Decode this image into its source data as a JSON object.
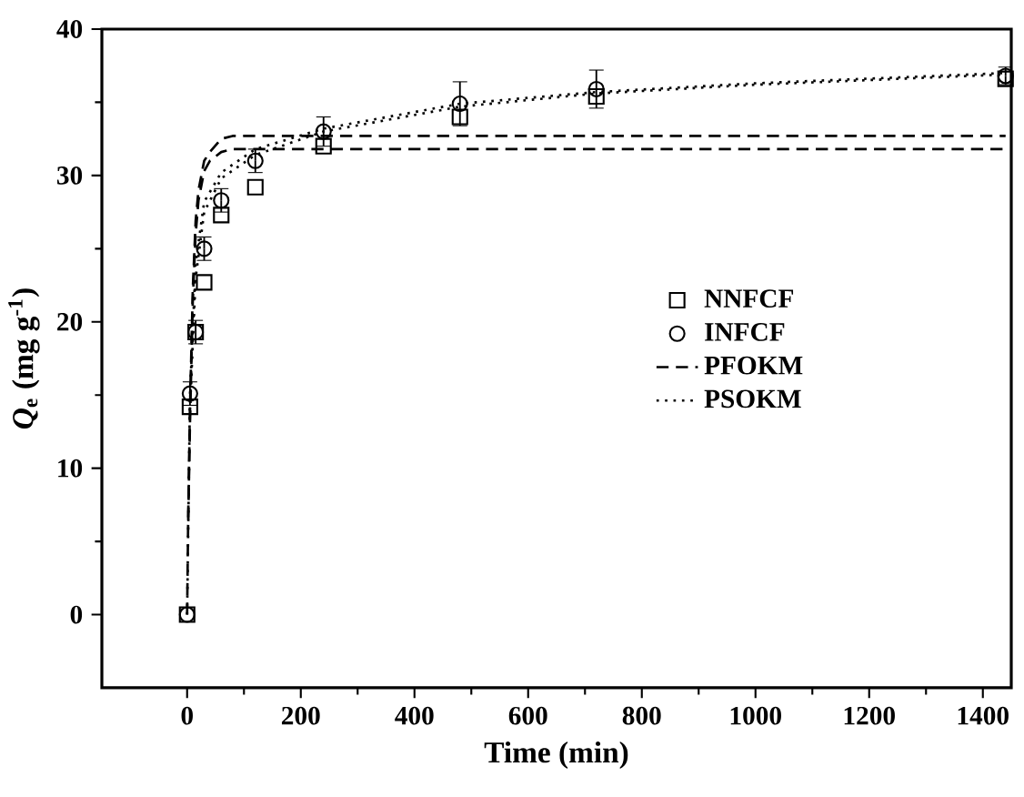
{
  "chart_data": {
    "type": "scatter",
    "xlabel": "Time (min)",
    "ylabel": "*Q*$_{e}$ (mg g$^{-1}$)",
    "xlim": [
      -150,
      1450
    ],
    "ylim": [
      -5,
      40
    ],
    "xticks": [
      0,
      200,
      400,
      600,
      800,
      1000,
      1200,
      1400
    ],
    "yticks": [
      0,
      10,
      20,
      30,
      40
    ],
    "legend": "right",
    "grid": false,
    "series": [
      {
        "name": "NNFCF",
        "color": "#000000",
        "marker": "square",
        "x": [
          0,
          5,
          15,
          30,
          60,
          120,
          240,
          480,
          720,
          1440
        ],
        "values": [
          0,
          14.2,
          19.3,
          22.7,
          27.3,
          29.2,
          32.0,
          34.0,
          35.4,
          36.6
        ]
      },
      {
        "name": "INFCF",
        "color": "#000000",
        "marker": "circle",
        "x": [
          0,
          5,
          15,
          30,
          60,
          120,
          240,
          480,
          720,
          1440
        ],
        "values": [
          0,
          15.1,
          19.3,
          25.0,
          28.3,
          31.0,
          33.0,
          34.9,
          35.9,
          36.8
        ],
        "errors": [
          null,
          0.8,
          0.8,
          0.8,
          0.8,
          0.8,
          1.0,
          1.5,
          1.3,
          0.6
        ]
      },
      {
        "name": "PFOKM",
        "type": "line",
        "line_style": "dashed",
        "color": "#000000",
        "x": [
          0,
          2,
          5,
          10,
          15,
          20,
          30,
          40,
          60,
          80,
          100,
          1440
        ],
        "values": [
          0,
          7.0,
          14.0,
          22.3,
          26.9,
          29.0,
          31.0,
          31.6,
          32.5,
          32.7,
          32.7,
          32.7
        ]
      },
      {
        "type": "line",
        "line_style": "dashed",
        "color": "#000000",
        "x": [
          2,
          5,
          10,
          15,
          20,
          30,
          40,
          60,
          80,
          100,
          1440
        ],
        "values": [
          6.5,
          13.0,
          21.5,
          26.0,
          28.3,
          30.3,
          31.0,
          31.6,
          31.8,
          31.8,
          31.8
        ]
      },
      {
        "name": "PSOKM",
        "type": "line",
        "line_style": "dotted",
        "color": "#000000",
        "x": [
          0,
          5,
          15,
          30,
          60,
          120,
          240,
          480,
          720,
          1000,
          1440
        ],
        "values": [
          0,
          15.0,
          24.0,
          28.2,
          30.2,
          31.8,
          33.2,
          34.9,
          35.7,
          36.3,
          37.0
        ]
      },
      {
        "type": "line",
        "line_style": "dotted",
        "color": "#000000",
        "x": [
          5,
          15,
          30,
          60,
          120,
          240,
          480,
          720,
          1000,
          1440
        ],
        "values": [
          14.0,
          23.0,
          27.5,
          29.8,
          31.4,
          33.0,
          34.7,
          35.6,
          36.2,
          36.9
        ]
      }
    ]
  }
}
